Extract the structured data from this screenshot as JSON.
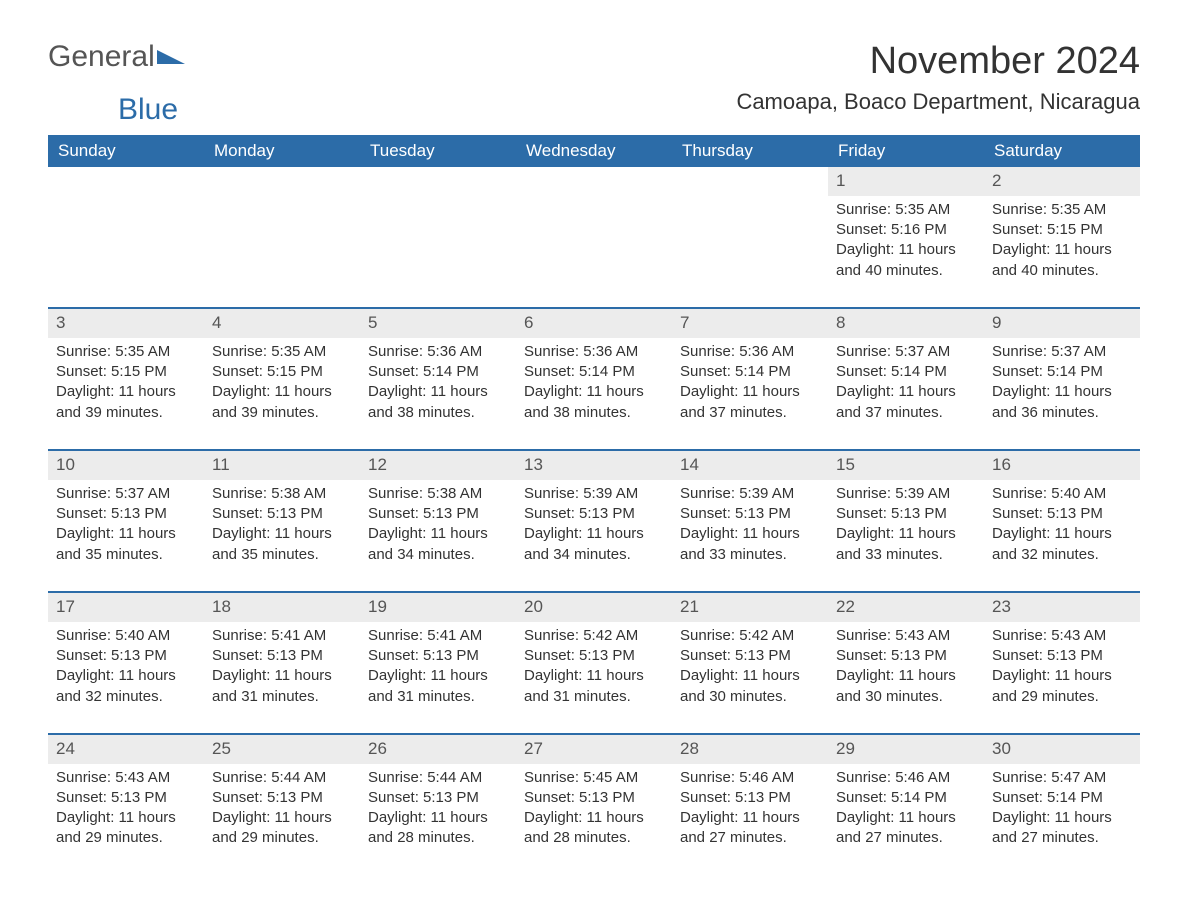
{
  "brand": {
    "part1": "General",
    "part2": "Blue",
    "logo_color": "#2c6ca8",
    "text_color": "#555555"
  },
  "title": "November 2024",
  "location": "Camoapa, Boaco Department, Nicaragua",
  "colors": {
    "header_bg": "#2c6ca8",
    "header_fg": "#ffffff",
    "row_divider": "#2c6ca8",
    "daynum_bg": "#ececec",
    "text": "#333333",
    "page_bg": "#ffffff"
  },
  "weekdays": [
    "Sunday",
    "Monday",
    "Tuesday",
    "Wednesday",
    "Thursday",
    "Friday",
    "Saturday"
  ],
  "weeks": [
    [
      {
        "empty": true
      },
      {
        "empty": true
      },
      {
        "empty": true
      },
      {
        "empty": true
      },
      {
        "empty": true
      },
      {
        "day": "1",
        "sunrise": "Sunrise: 5:35 AM",
        "sunset": "Sunset: 5:16 PM",
        "daylight1": "Daylight: 11 hours",
        "daylight2": "and 40 minutes."
      },
      {
        "day": "2",
        "sunrise": "Sunrise: 5:35 AM",
        "sunset": "Sunset: 5:15 PM",
        "daylight1": "Daylight: 11 hours",
        "daylight2": "and 40 minutes."
      }
    ],
    [
      {
        "day": "3",
        "sunrise": "Sunrise: 5:35 AM",
        "sunset": "Sunset: 5:15 PM",
        "daylight1": "Daylight: 11 hours",
        "daylight2": "and 39 minutes."
      },
      {
        "day": "4",
        "sunrise": "Sunrise: 5:35 AM",
        "sunset": "Sunset: 5:15 PM",
        "daylight1": "Daylight: 11 hours",
        "daylight2": "and 39 minutes."
      },
      {
        "day": "5",
        "sunrise": "Sunrise: 5:36 AM",
        "sunset": "Sunset: 5:14 PM",
        "daylight1": "Daylight: 11 hours",
        "daylight2": "and 38 minutes."
      },
      {
        "day": "6",
        "sunrise": "Sunrise: 5:36 AM",
        "sunset": "Sunset: 5:14 PM",
        "daylight1": "Daylight: 11 hours",
        "daylight2": "and 38 minutes."
      },
      {
        "day": "7",
        "sunrise": "Sunrise: 5:36 AM",
        "sunset": "Sunset: 5:14 PM",
        "daylight1": "Daylight: 11 hours",
        "daylight2": "and 37 minutes."
      },
      {
        "day": "8",
        "sunrise": "Sunrise: 5:37 AM",
        "sunset": "Sunset: 5:14 PM",
        "daylight1": "Daylight: 11 hours",
        "daylight2": "and 37 minutes."
      },
      {
        "day": "9",
        "sunrise": "Sunrise: 5:37 AM",
        "sunset": "Sunset: 5:14 PM",
        "daylight1": "Daylight: 11 hours",
        "daylight2": "and 36 minutes."
      }
    ],
    [
      {
        "day": "10",
        "sunrise": "Sunrise: 5:37 AM",
        "sunset": "Sunset: 5:13 PM",
        "daylight1": "Daylight: 11 hours",
        "daylight2": "and 35 minutes."
      },
      {
        "day": "11",
        "sunrise": "Sunrise: 5:38 AM",
        "sunset": "Sunset: 5:13 PM",
        "daylight1": "Daylight: 11 hours",
        "daylight2": "and 35 minutes."
      },
      {
        "day": "12",
        "sunrise": "Sunrise: 5:38 AM",
        "sunset": "Sunset: 5:13 PM",
        "daylight1": "Daylight: 11 hours",
        "daylight2": "and 34 minutes."
      },
      {
        "day": "13",
        "sunrise": "Sunrise: 5:39 AM",
        "sunset": "Sunset: 5:13 PM",
        "daylight1": "Daylight: 11 hours",
        "daylight2": "and 34 minutes."
      },
      {
        "day": "14",
        "sunrise": "Sunrise: 5:39 AM",
        "sunset": "Sunset: 5:13 PM",
        "daylight1": "Daylight: 11 hours",
        "daylight2": "and 33 minutes."
      },
      {
        "day": "15",
        "sunrise": "Sunrise: 5:39 AM",
        "sunset": "Sunset: 5:13 PM",
        "daylight1": "Daylight: 11 hours",
        "daylight2": "and 33 minutes."
      },
      {
        "day": "16",
        "sunrise": "Sunrise: 5:40 AM",
        "sunset": "Sunset: 5:13 PM",
        "daylight1": "Daylight: 11 hours",
        "daylight2": "and 32 minutes."
      }
    ],
    [
      {
        "day": "17",
        "sunrise": "Sunrise: 5:40 AM",
        "sunset": "Sunset: 5:13 PM",
        "daylight1": "Daylight: 11 hours",
        "daylight2": "and 32 minutes."
      },
      {
        "day": "18",
        "sunrise": "Sunrise: 5:41 AM",
        "sunset": "Sunset: 5:13 PM",
        "daylight1": "Daylight: 11 hours",
        "daylight2": "and 31 minutes."
      },
      {
        "day": "19",
        "sunrise": "Sunrise: 5:41 AM",
        "sunset": "Sunset: 5:13 PM",
        "daylight1": "Daylight: 11 hours",
        "daylight2": "and 31 minutes."
      },
      {
        "day": "20",
        "sunrise": "Sunrise: 5:42 AM",
        "sunset": "Sunset: 5:13 PM",
        "daylight1": "Daylight: 11 hours",
        "daylight2": "and 31 minutes."
      },
      {
        "day": "21",
        "sunrise": "Sunrise: 5:42 AM",
        "sunset": "Sunset: 5:13 PM",
        "daylight1": "Daylight: 11 hours",
        "daylight2": "and 30 minutes."
      },
      {
        "day": "22",
        "sunrise": "Sunrise: 5:43 AM",
        "sunset": "Sunset: 5:13 PM",
        "daylight1": "Daylight: 11 hours",
        "daylight2": "and 30 minutes."
      },
      {
        "day": "23",
        "sunrise": "Sunrise: 5:43 AM",
        "sunset": "Sunset: 5:13 PM",
        "daylight1": "Daylight: 11 hours",
        "daylight2": "and 29 minutes."
      }
    ],
    [
      {
        "day": "24",
        "sunrise": "Sunrise: 5:43 AM",
        "sunset": "Sunset: 5:13 PM",
        "daylight1": "Daylight: 11 hours",
        "daylight2": "and 29 minutes."
      },
      {
        "day": "25",
        "sunrise": "Sunrise: 5:44 AM",
        "sunset": "Sunset: 5:13 PM",
        "daylight1": "Daylight: 11 hours",
        "daylight2": "and 29 minutes."
      },
      {
        "day": "26",
        "sunrise": "Sunrise: 5:44 AM",
        "sunset": "Sunset: 5:13 PM",
        "daylight1": "Daylight: 11 hours",
        "daylight2": "and 28 minutes."
      },
      {
        "day": "27",
        "sunrise": "Sunrise: 5:45 AM",
        "sunset": "Sunset: 5:13 PM",
        "daylight1": "Daylight: 11 hours",
        "daylight2": "and 28 minutes."
      },
      {
        "day": "28",
        "sunrise": "Sunrise: 5:46 AM",
        "sunset": "Sunset: 5:13 PM",
        "daylight1": "Daylight: 11 hours",
        "daylight2": "and 27 minutes."
      },
      {
        "day": "29",
        "sunrise": "Sunrise: 5:46 AM",
        "sunset": "Sunset: 5:14 PM",
        "daylight1": "Daylight: 11 hours",
        "daylight2": "and 27 minutes."
      },
      {
        "day": "30",
        "sunrise": "Sunrise: 5:47 AM",
        "sunset": "Sunset: 5:14 PM",
        "daylight1": "Daylight: 11 hours",
        "daylight2": "and 27 minutes."
      }
    ]
  ]
}
